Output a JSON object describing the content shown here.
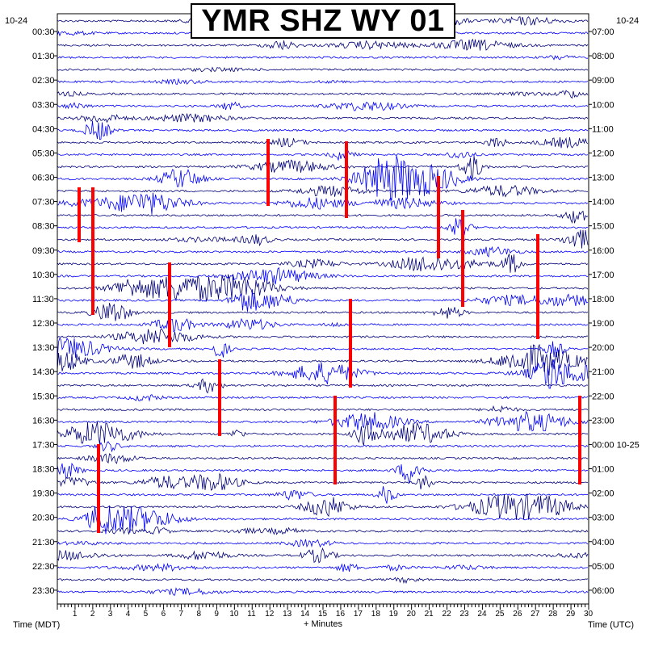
{
  "chart_data": {
    "type": "line",
    "title": "YMR SHZ WY 01",
    "date_left": "10-24",
    "date_right": "10-24",
    "xlabel": "+ Minutes",
    "ylabel_left": "Time (MDT)",
    "ylabel_right": "Time (UTC)",
    "xlim": [
      0,
      30
    ],
    "x_ticks": [
      "1",
      "2",
      "3",
      "4",
      "5",
      "6",
      "7",
      "8",
      "9",
      "10",
      "11",
      "12",
      "13",
      "14",
      "15",
      "16",
      "17",
      "18",
      "19",
      "20",
      "21",
      "22",
      "23",
      "24",
      "25",
      "26",
      "27",
      "28",
      "29",
      "30"
    ],
    "left_labels": [
      "00:30",
      "01:30",
      "02:30",
      "03:30",
      "04:30",
      "05:30",
      "06:30",
      "07:30",
      "08:30",
      "09:30",
      "10:30",
      "11:30",
      "12:30",
      "13:30",
      "14:30",
      "15:30",
      "16:30",
      "17:30",
      "18:30",
      "19:30",
      "20:30",
      "21:30",
      "22:30",
      "23:30"
    ],
    "right_labels": [
      "07:00",
      "08:00",
      "09:00",
      "10:00",
      "11:00",
      "12:00",
      "13:00",
      "14:00",
      "15:00",
      "16:00",
      "17:00",
      "18:00",
      "19:00",
      "20:00",
      "21:00",
      "22:00",
      "23:00",
      "00:00 10-25",
      "01:00",
      "02:00",
      "03:00",
      "04:00",
      "05:00",
      "06:00"
    ],
    "trace_rows": 48,
    "trace_colors": [
      "#00007a",
      "#0000ff"
    ],
    "clip_color": "#ff0000",
    "grid": true
  }
}
